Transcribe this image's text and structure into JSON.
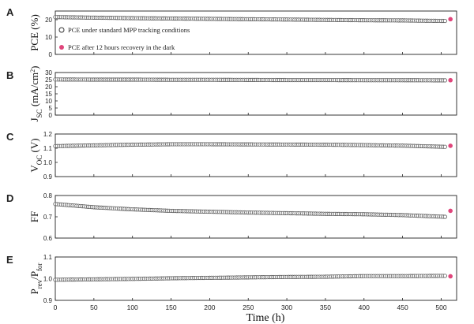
{
  "colors": {
    "primary": "#555555",
    "recovery": "#e0457b",
    "axis": "#222222"
  },
  "chart_data": {
    "type": "scatter",
    "xlabel": "Time (h)",
    "xlim": [
      0,
      520
    ],
    "xticks": [
      0,
      50,
      100,
      150,
      200,
      250,
      300,
      350,
      400,
      450,
      500
    ],
    "legend": {
      "placement": "inside-panel-A",
      "entries": [
        {
          "label": "PCE under standard MPP tracking conditions",
          "marker": "open-circle"
        },
        {
          "label": "PCE after 12 hours recovery in the dark",
          "marker": "filled-circle-pink"
        }
      ]
    },
    "panels": [
      {
        "letter": "A",
        "ylabel": "PCE (%)",
        "ylim": [
          0,
          25
        ],
        "yticks": [
          0,
          10,
          20
        ],
        "series": {
          "type": "open-circles",
          "x": [
            0,
            50,
            100,
            150,
            200,
            250,
            300,
            350,
            400,
            450,
            505
          ],
          "y": [
            21.5,
            21.2,
            20.9,
            20.7,
            20.5,
            20.3,
            20.1,
            19.9,
            19.7,
            19.6,
            19.3
          ]
        },
        "recovery_point": {
          "x": 512,
          "y": 20.3
        }
      },
      {
        "letter": "B",
        "ylabel": "J_SC (mA/cm^2)",
        "ylim": [
          0,
          30
        ],
        "yticks": [
          0,
          5,
          10,
          15,
          20,
          25,
          30
        ],
        "series": {
          "type": "open-circles",
          "x": [
            0,
            50,
            100,
            150,
            200,
            250,
            300,
            350,
            400,
            450,
            505
          ],
          "y": [
            25.1,
            25.0,
            25.0,
            24.9,
            24.9,
            24.8,
            24.7,
            24.7,
            24.6,
            24.6,
            24.5
          ]
        },
        "recovery_point": {
          "x": 512,
          "y": 24.6
        }
      },
      {
        "letter": "C",
        "ylabel": "V_OC (V)",
        "ylim": [
          0.9,
          1.2
        ],
        "yticks": [
          0.9,
          1.0,
          1.1,
          1.2
        ],
        "series": {
          "type": "open-circles",
          "x": [
            0,
            50,
            100,
            150,
            200,
            250,
            300,
            350,
            400,
            450,
            505
          ],
          "y": [
            1.115,
            1.12,
            1.125,
            1.128,
            1.128,
            1.127,
            1.126,
            1.125,
            1.122,
            1.118,
            1.11
          ]
        },
        "recovery_point": {
          "x": 512,
          "y": 1.117
        }
      },
      {
        "letter": "D",
        "ylabel": "FF",
        "ylim": [
          0.6,
          0.8
        ],
        "yticks": [
          0.6,
          0.7,
          0.8
        ],
        "series": {
          "type": "open-circles",
          "x": [
            0,
            50,
            100,
            150,
            200,
            250,
            300,
            350,
            400,
            450,
            505
          ],
          "y": [
            0.76,
            0.745,
            0.735,
            0.728,
            0.724,
            0.72,
            0.717,
            0.714,
            0.712,
            0.708,
            0.7
          ]
        },
        "recovery_point": {
          "x": 512,
          "y": 0.728
        }
      },
      {
        "letter": "E",
        "ylabel": "P_rev/P_for",
        "ylim": [
          0.9,
          1.1
        ],
        "yticks": [
          0.9,
          1.0,
          1.1
        ],
        "series": {
          "type": "open-circles",
          "x": [
            0,
            50,
            100,
            150,
            200,
            250,
            300,
            350,
            400,
            450,
            505
          ],
          "y": [
            0.995,
            0.997,
            0.999,
            1.002,
            1.004,
            1.006,
            1.008,
            1.009,
            1.012,
            1.012,
            1.013
          ]
        },
        "recovery_point": {
          "x": 512,
          "y": 1.011
        }
      }
    ]
  }
}
